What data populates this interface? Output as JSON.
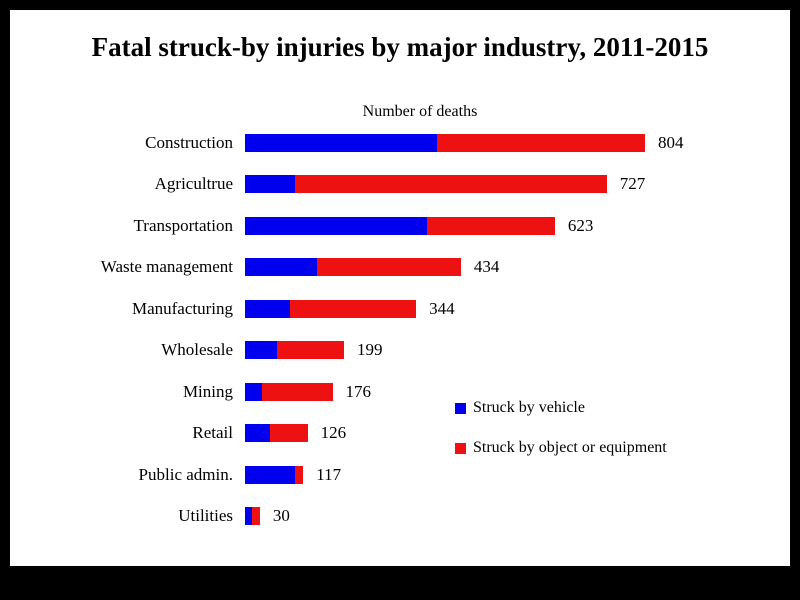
{
  "chart_data": {
    "type": "bar",
    "orientation": "horizontal",
    "stacked": true,
    "title": "Fatal struck-by injuries by major industry, 2011-2015",
    "axis_note": "Number of deaths",
    "categories": [
      "Construction",
      "Agricultrue",
      "Transportation",
      "Waste management",
      "Manufacturing",
      "Wholesale",
      "Mining",
      "Retail",
      "Public admin.",
      "Utilities"
    ],
    "totals": [
      804,
      727,
      623,
      434,
      344,
      199,
      176,
      126,
      117,
      30
    ],
    "series": [
      {
        "name": "Struck by vehicle",
        "color": "#0000EE",
        "values": [
          385,
          100,
          365,
          145,
          90,
          65,
          35,
          50,
          100,
          14
        ]
      },
      {
        "name": "Struck by object or equipment",
        "color": "#EE1111",
        "values": [
          419,
          627,
          258,
          289,
          254,
          134,
          141,
          76,
          17,
          16
        ]
      }
    ],
    "xlim": [
      0,
      804
    ],
    "legend_position": "right-lower",
    "grid": false
  }
}
